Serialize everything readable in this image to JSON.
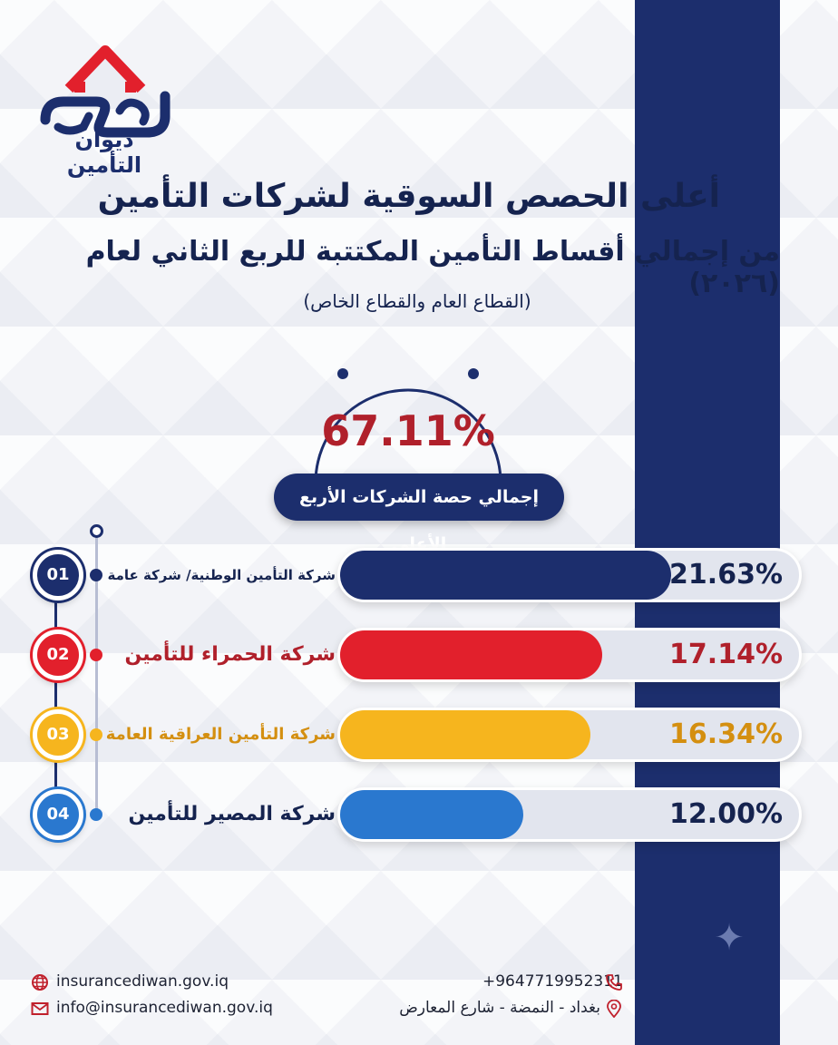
{
  "brand": {
    "name": "ديوان التأمين"
  },
  "header": {
    "title": "أعلى الحصص السوقية لشركات التأمين",
    "subtitle": "من إجمالي أقساط التأمين المكتتبة للربع الثاني لعام (٢٠٢٦)",
    "note": "(القطاع العام والقطاع الخاص)"
  },
  "total": {
    "value": "67.11%",
    "label": "إجمالي حصة الشركات الأربع الأعلى"
  },
  "chart_data": {
    "type": "bar",
    "orientation": "horizontal",
    "xlim": [
      0,
      30
    ],
    "categories": [
      "شركة التأمين الوطنية/ شركة عامة",
      "شركة الحمراء للتأمين",
      "شركة التأمين العراقية العامة",
      "شركة المصير للتأمين"
    ],
    "values": [
      21.63,
      17.14,
      16.34,
      12.0
    ],
    "value_labels": [
      "21.63%",
      "17.14%",
      "16.34%",
      "12.00%"
    ],
    "ranks": [
      "01",
      "02",
      "03",
      "04"
    ],
    "colors": [
      "#1c2e6d",
      "#e2202c",
      "#f6b51e",
      "#2a78cf"
    ],
    "label_colors": [
      "#15234f",
      "#b0202b",
      "#d48f10",
      "#15234f"
    ]
  },
  "footer": {
    "website": "insurancediwan.gov.iq",
    "email": "info@insurancediwan.gov.iq",
    "phone": "+9647719952311",
    "address": "بغداد - النمضة - شارع المعارض"
  },
  "colors": {
    "navy": "#1c2e6d",
    "red": "#b0202b",
    "background": "#f3f4f8"
  }
}
